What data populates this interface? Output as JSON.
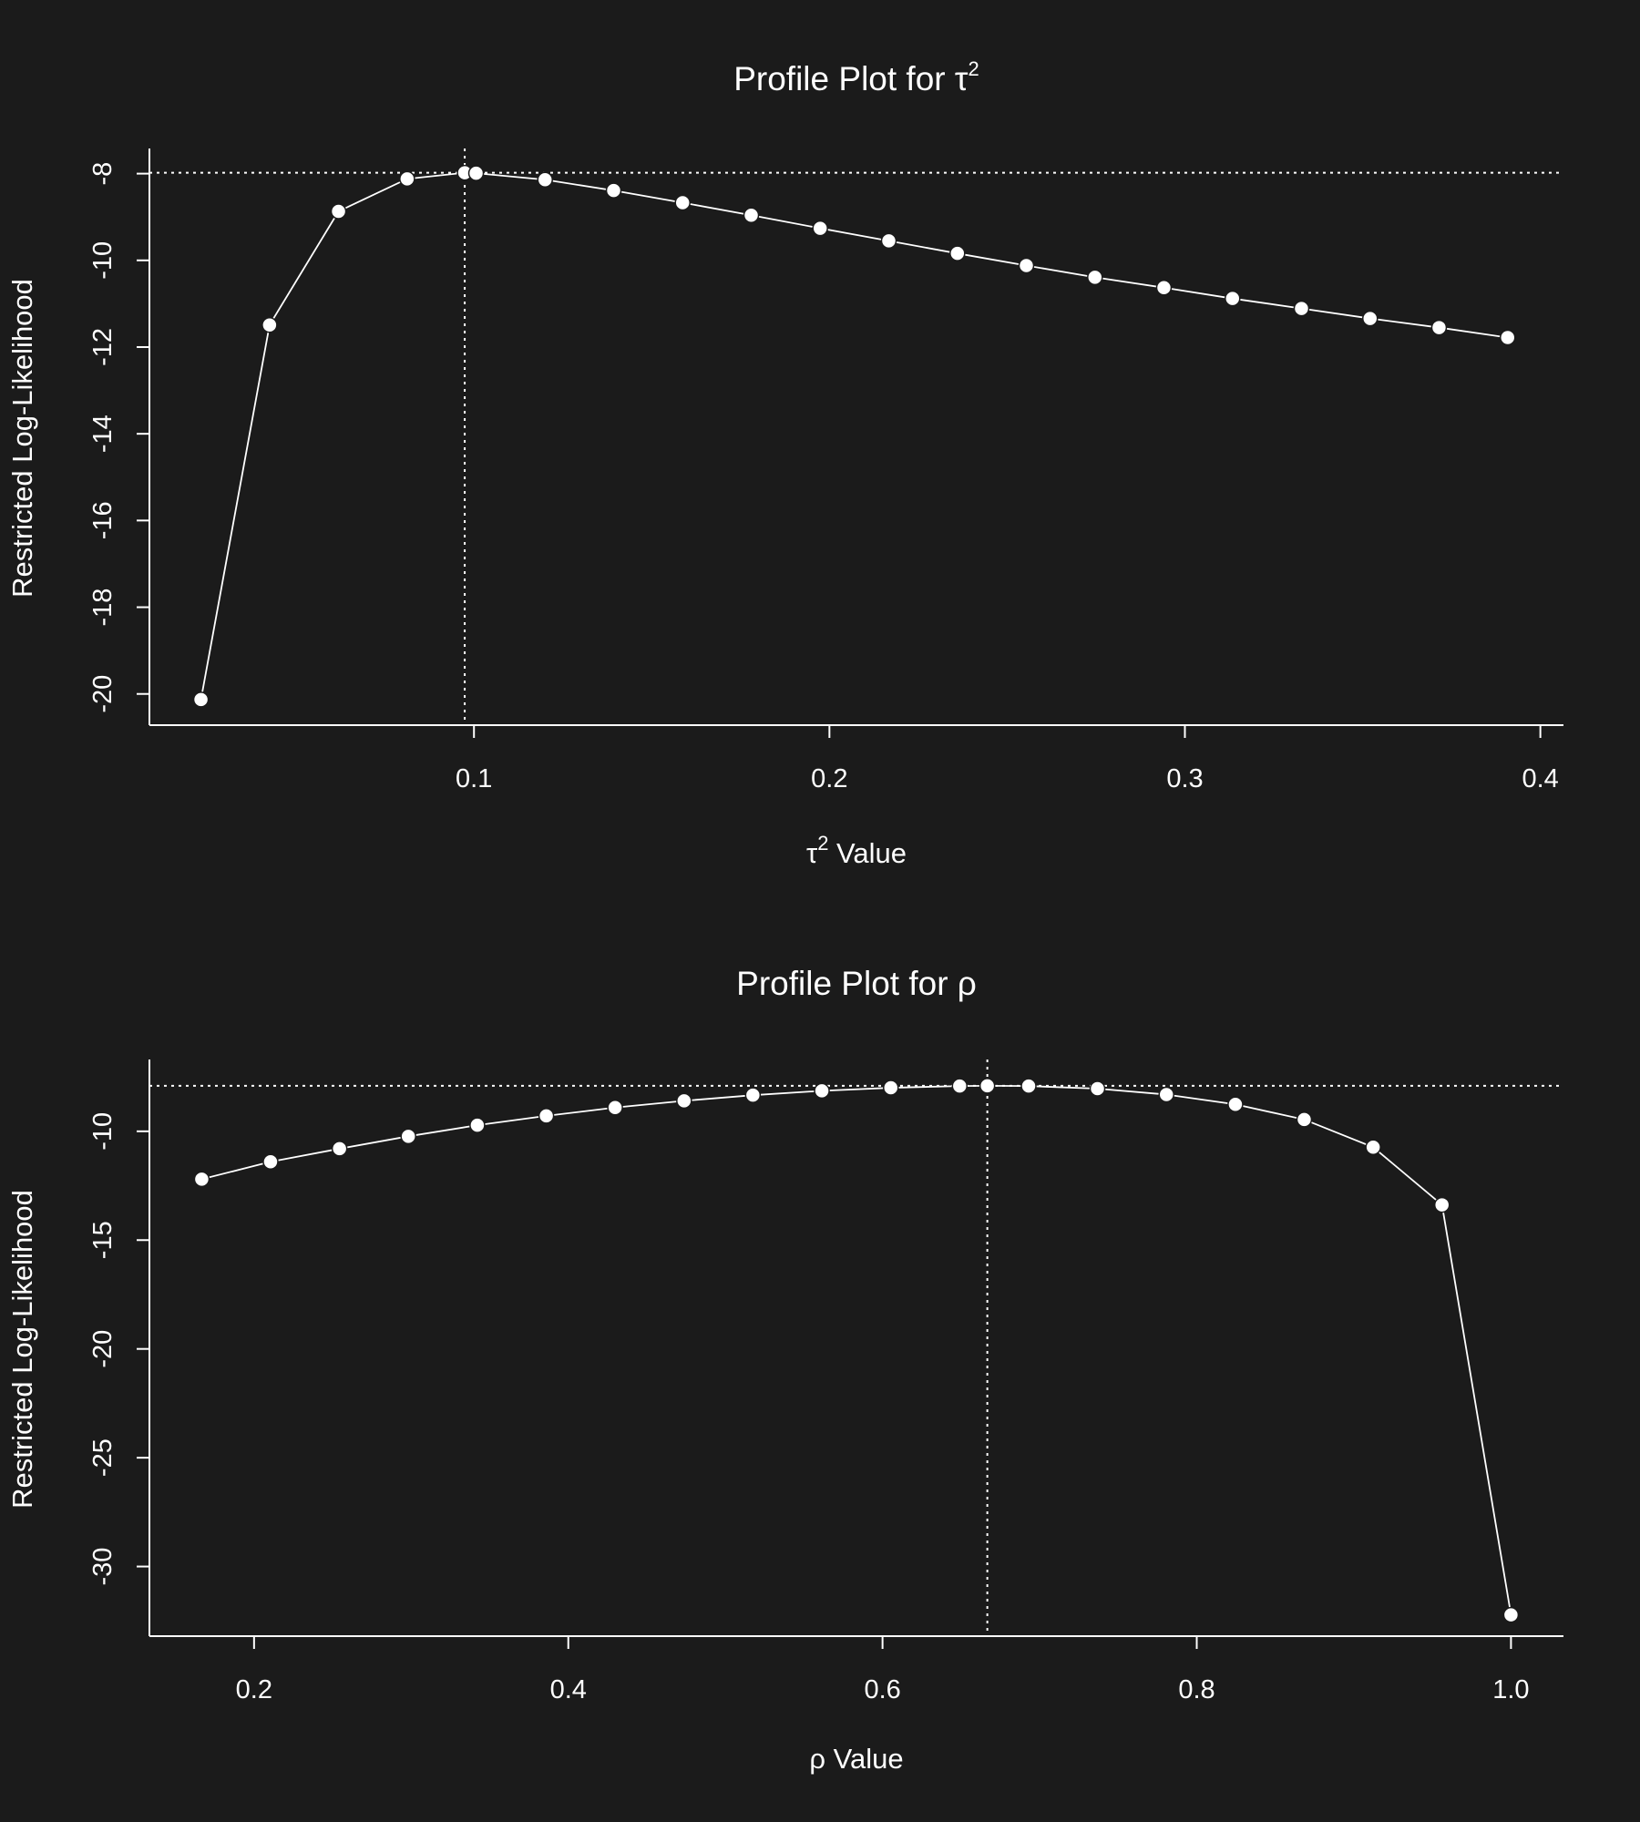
{
  "colors": {
    "background": "#1b1b1b",
    "foreground": "#ffffff"
  },
  "chart_data": [
    {
      "type": "line",
      "title": "Profile Plot for τ",
      "title_sup": "2",
      "xlabel": " Value",
      "xlabel_prefix": "τ",
      "xlabel_sup": "2",
      "ylabel": "Restricted Log-Likelihood",
      "xlim": [
        0.0087,
        0.4065
      ],
      "ylim": [
        -20.72,
        -7.42
      ],
      "xticks": [
        0.1,
        0.2,
        0.3,
        0.4
      ],
      "xtick_labels": [
        "0.1",
        "0.2",
        "0.3",
        "0.4"
      ],
      "yticks": [
        -20,
        -18,
        -16,
        -14,
        -12,
        -10,
        -8
      ],
      "ytick_labels": [
        "-20",
        "-18",
        "-16",
        "-14",
        "-12",
        "-10",
        "-8"
      ],
      "grid": false,
      "marker": "filled-circle",
      "series": [
        {
          "x": [
            0.0232,
            0.0425,
            0.0619,
            0.0812,
            0.0974,
            0.1006,
            0.12,
            0.1393,
            0.1587,
            0.178,
            0.1974,
            0.2167,
            0.236,
            0.2554,
            0.2747,
            0.2941,
            0.3134,
            0.3328,
            0.3521,
            0.3715,
            0.3908
          ],
          "y": [
            -20.13,
            -11.49,
            -8.87,
            -8.12,
            -7.98,
            -7.99,
            -8.14,
            -8.39,
            -8.67,
            -8.96,
            -9.26,
            -9.55,
            -9.84,
            -10.12,
            -10.39,
            -10.63,
            -10.88,
            -11.11,
            -11.34,
            -11.55,
            -11.78
          ]
        }
      ],
      "reference_lines": {
        "hline": -7.98,
        "vline": 0.0974
      }
    },
    {
      "type": "line",
      "title": "Profile Plot for ρ",
      "xlabel": "ρ Value",
      "ylabel": "Restricted Log-Likelihood",
      "xlim": [
        0.1334,
        1.0334
      ],
      "ylim": [
        -33.2,
        -6.7
      ],
      "xticks": [
        0.2,
        0.4,
        0.6,
        0.8,
        1.0
      ],
      "xtick_labels": [
        "0.2",
        "0.4",
        "0.6",
        "0.8",
        "1.0"
      ],
      "yticks": [
        -30,
        -25,
        -20,
        -15,
        -10
      ],
      "ytick_labels": [
        "-30",
        "-25",
        "-20",
        "-15",
        "-10"
      ],
      "grid": false,
      "marker": "filled-circle",
      "series": [
        {
          "x": [
            0.1667,
            0.2105,
            0.2544,
            0.2982,
            0.3421,
            0.386,
            0.4298,
            0.4737,
            0.5175,
            0.5614,
            0.6053,
            0.6491,
            0.6667,
            0.693,
            0.7368,
            0.7807,
            0.8246,
            0.8684,
            0.9123,
            0.9561,
            1.0
          ],
          "y": [
            -12.2,
            -11.4,
            -10.8,
            -10.23,
            -9.72,
            -9.29,
            -8.91,
            -8.6,
            -8.34,
            -8.14,
            -8.0,
            -7.92,
            -7.91,
            -7.92,
            -8.04,
            -8.31,
            -8.76,
            -9.46,
            -10.73,
            -13.38,
            -32.22
          ]
        }
      ],
      "reference_lines": {
        "hline": -7.91,
        "vline": 0.6667
      }
    }
  ]
}
